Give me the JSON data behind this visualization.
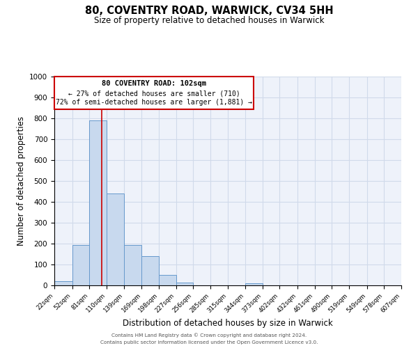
{
  "title": "80, COVENTRY ROAD, WARWICK, CV34 5HH",
  "subtitle": "Size of property relative to detached houses in Warwick",
  "xlabel": "Distribution of detached houses by size in Warwick",
  "ylabel": "Number of detached properties",
  "bar_color": "#c8d9ee",
  "bar_edge_color": "#6699cc",
  "grid_color": "#d0daea",
  "background_color": "#eef2fa",
  "annotation_box_edgecolor": "#cc0000",
  "annotation_line_color": "#cc0000",
  "property_line_x": 102,
  "annotation_title": "80 COVENTRY ROAD: 102sqm",
  "annotation_line1": "← 27% of detached houses are smaller (710)",
  "annotation_line2": "72% of semi-detached houses are larger (1,881) →",
  "ylim": [
    0,
    1000
  ],
  "yticks": [
    0,
    100,
    200,
    300,
    400,
    500,
    600,
    700,
    800,
    900,
    1000
  ],
  "bin_edges": [
    22,
    52,
    81,
    110,
    139,
    169,
    198,
    227,
    256,
    285,
    315,
    344,
    373,
    402,
    432,
    461,
    490,
    519,
    549,
    578,
    607
  ],
  "bar_heights": [
    20,
    195,
    790,
    440,
    195,
    140,
    50,
    15,
    0,
    0,
    0,
    10,
    0,
    0,
    0,
    0,
    0,
    0,
    0,
    0
  ],
  "footer1": "Contains HM Land Registry data © Crown copyright and database right 2024.",
  "footer2": "Contains public sector information licensed under the Open Government Licence v3.0."
}
